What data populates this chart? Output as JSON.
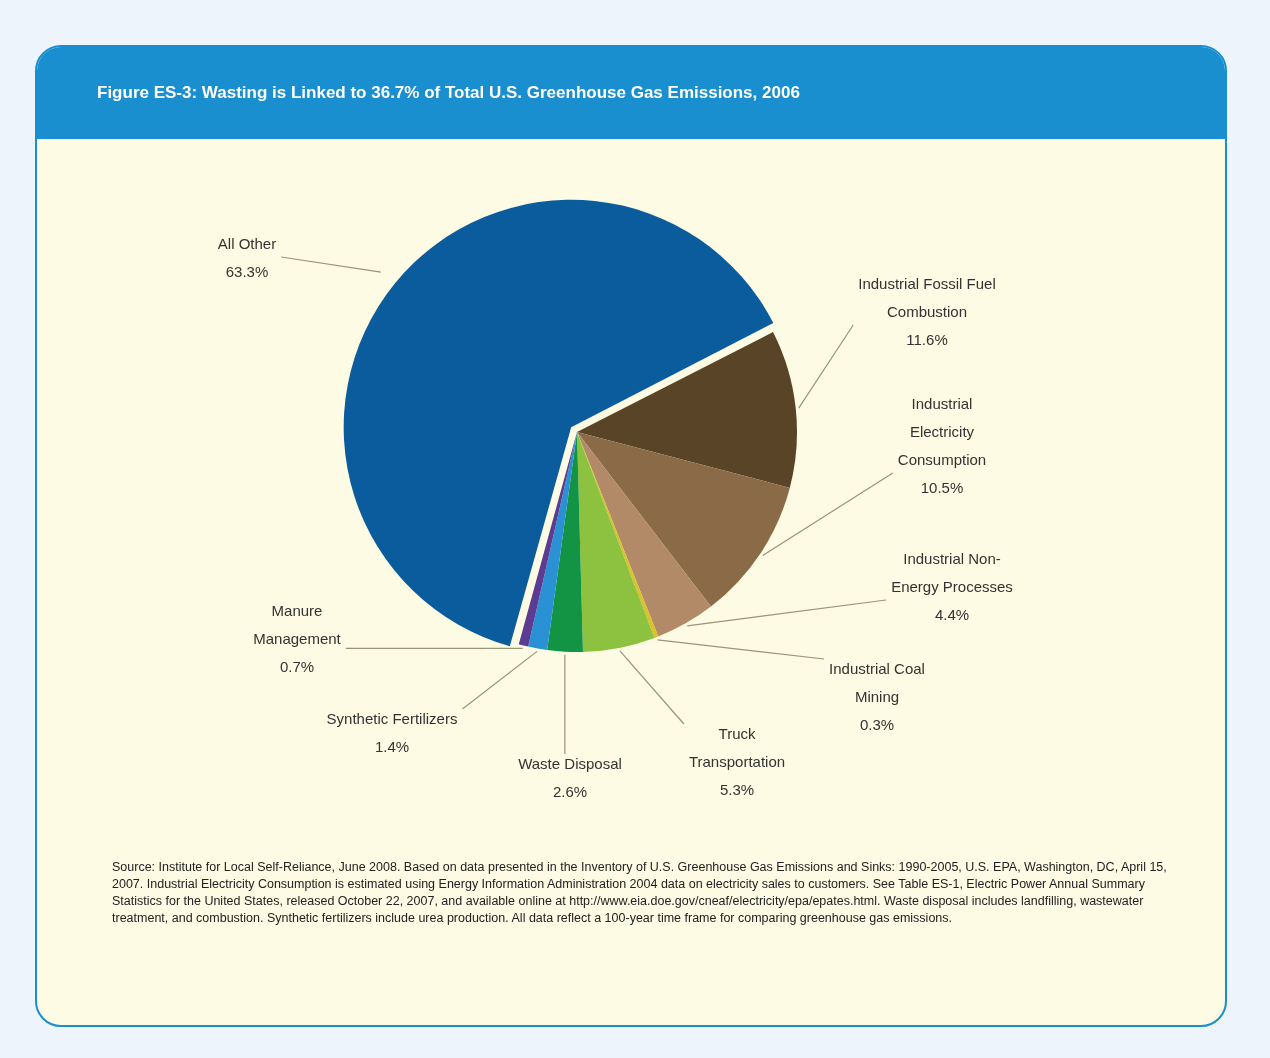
{
  "chart_data": {
    "type": "pie",
    "title": "Figure ES-3: Wasting is Linked to 36.7% of Total U.S. Greenhouse Gas Emissions, 2006",
    "categories": [
      "Industrial Fossil Fuel Combustion",
      "Industrial Electricity Consumption",
      "Industrial Non-Energy Processes",
      "Industrial Coal Mining",
      "Truck Transportation",
      "Waste Disposal",
      "Synthetic Fertilizers",
      "Manure Management",
      "All Other"
    ],
    "values": [
      11.6,
      10.5,
      4.4,
      0.3,
      5.3,
      2.6,
      1.4,
      0.7,
      63.3
    ],
    "value_labels": [
      "11.6%",
      "10.5%",
      "4.4%",
      "0.3%",
      "5.3%",
      "2.6%",
      "1.4%",
      "0.7%",
      "63.3%"
    ],
    "colors": [
      "#5a4427",
      "#8b6b47",
      "#b38a68",
      "#d9c22a",
      "#8cc23f",
      "#129444",
      "#2a92d4",
      "#5b3c92",
      "#0b5c9c"
    ],
    "legend": false,
    "annotations": [
      "Source: Institute for Local Self-Reliance, June 2008. Based on data presented in the Inventory of U.S. Greenhouse Gas Emissions and Sinks: 1990-2005, U.S. EPA, Washington, DC, April 15, 2007. Industrial Electricity Consumption is estimated using Energy Information Administration 2004 data on electricity sales to customers. See Table ES-1, Electric Power Annual Summary Statistics for the United States, released October 22, 2007, and available online at http://www.eia.doe.gov/cneaf/electricity/epa/epates.html. Waste disposal includes landfilling, wastewater treatment, and combustion. Synthetic fertilizers include urea production. All data reflect a 100-year time frame for comparing greenhouse gas emissions."
    ]
  }
}
